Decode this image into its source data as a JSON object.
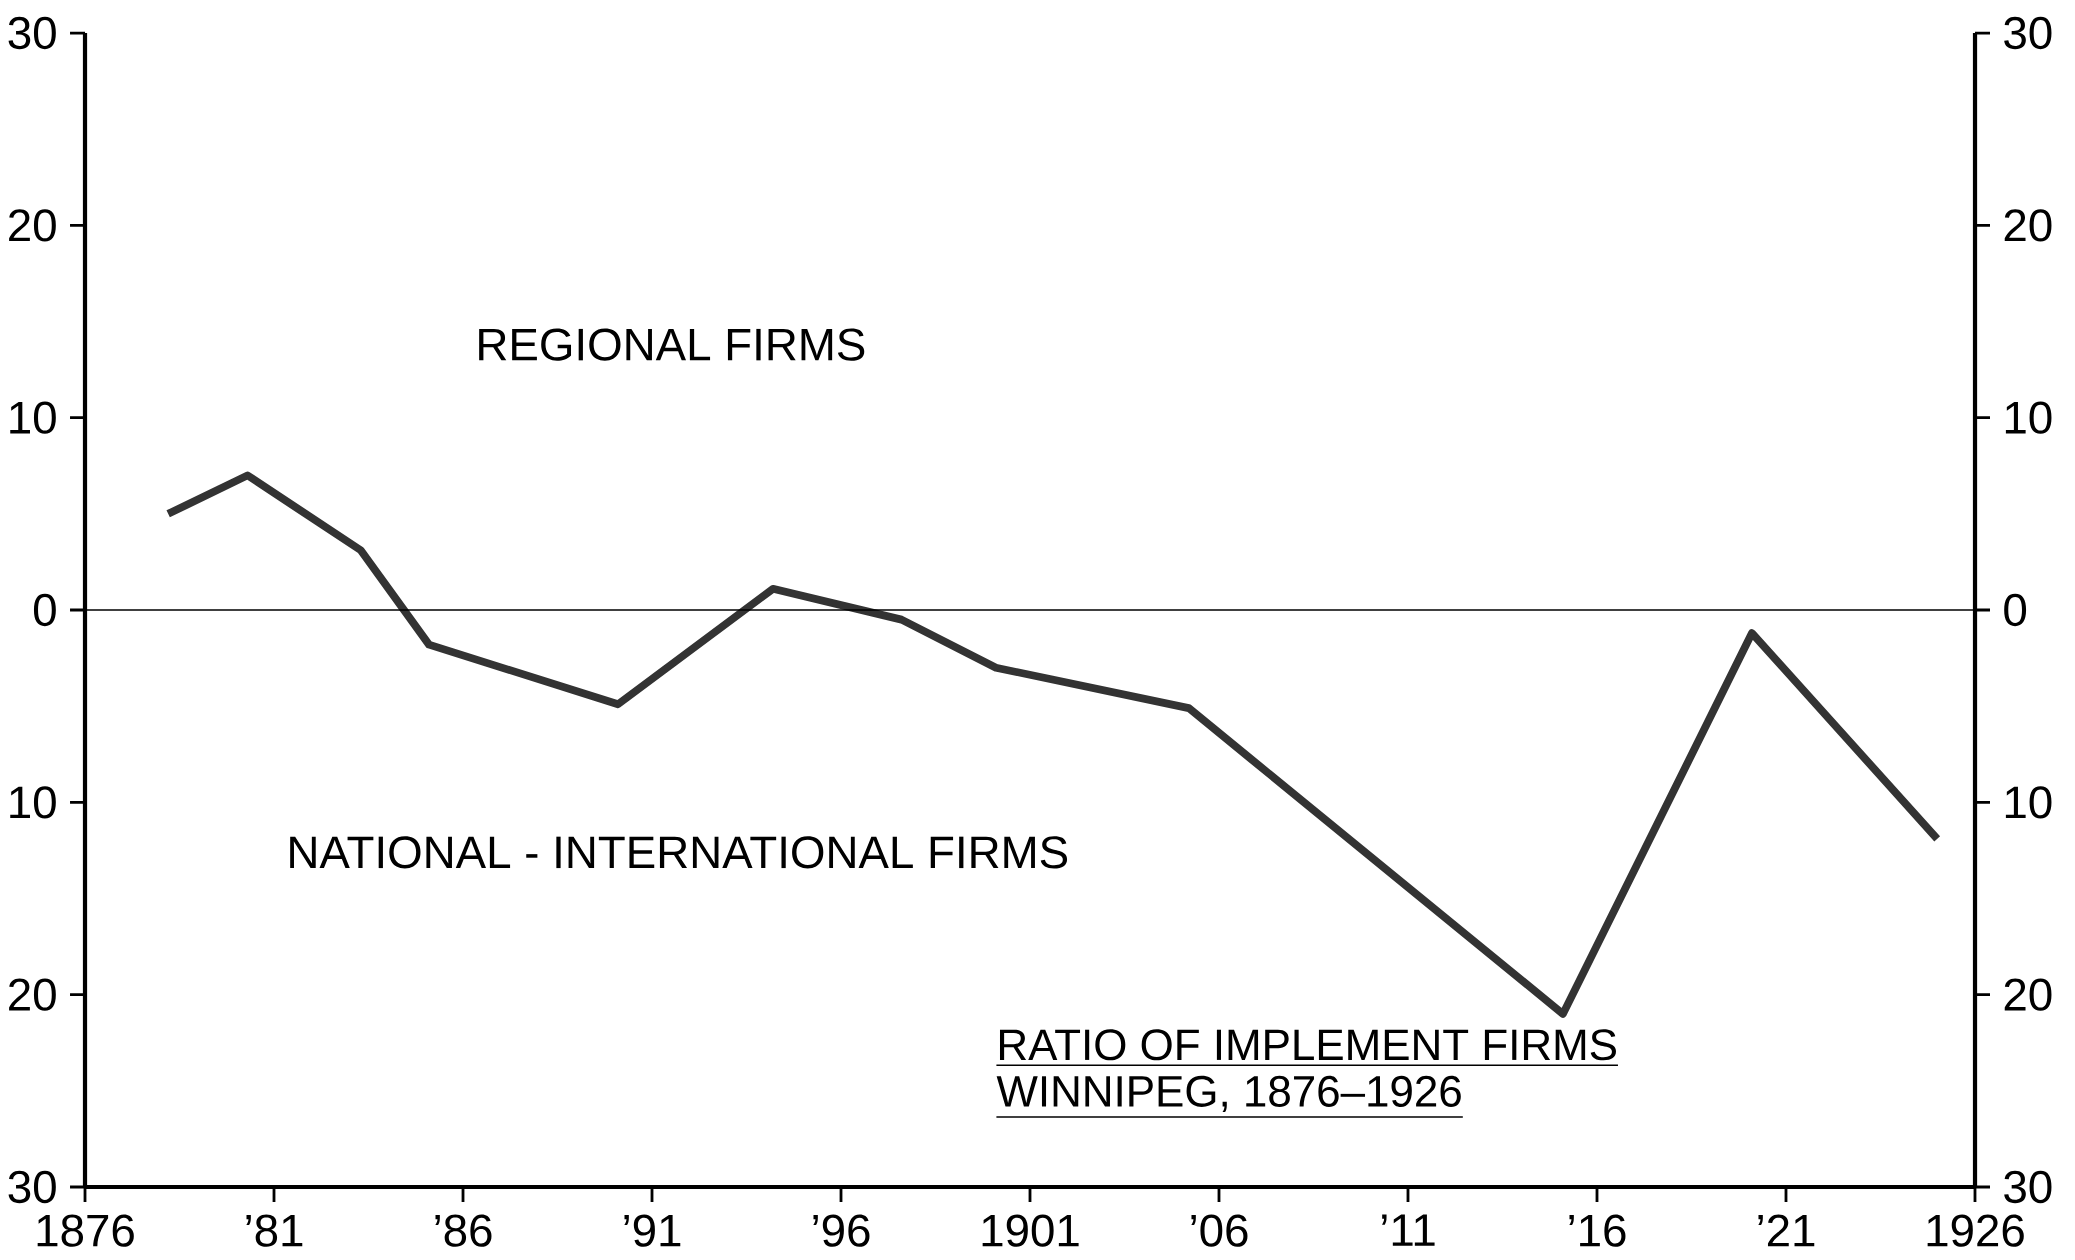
{
  "chart_data": {
    "type": "line",
    "title": "RATIO OF IMPLEMENT FIRMS",
    "subtitle": "WINNIPEG, 1876–1926",
    "annotations": [
      "REGIONAL FIRMS",
      "NATIONAL - INTERNATIONAL FIRMS"
    ],
    "x": [
      1878.2,
      1880.3,
      1883.3,
      1885.1,
      1890.1,
      1894.2,
      1897.6,
      1900.1,
      1905.2,
      1915.1,
      1920.1,
      1925.0
    ],
    "series": [
      {
        "color": "#333333",
        "values": [
          5,
          7,
          3.1,
          -1.8,
          -4.9,
          1.1,
          -0.5,
          -3.0,
          -5.1,
          -21,
          -1.2,
          -11.9
        ]
      }
    ],
    "xlim": [
      1876,
      1926
    ],
    "xticks": [
      1876,
      {
        "value": 1881,
        "label": "’81"
      },
      {
        "value": 1886,
        "label": "’86"
      },
      {
        "value": 1891,
        "label": "’91"
      },
      {
        "value": 1896,
        "label": "’96"
      },
      1901,
      {
        "value": 1906,
        "label": "’06"
      },
      {
        "value": 1911,
        "label": "’11"
      },
      {
        "value": 1916,
        "label": "’16"
      },
      {
        "value": 1921,
        "label": "’21"
      },
      1926
    ],
    "ylim": [
      -30,
      30
    ],
    "yticks": [
      {
        "value": -30,
        "label": "30"
      },
      {
        "value": -20,
        "label": "20"
      },
      {
        "value": -10,
        "label": "10"
      },
      0,
      10,
      20,
      30
    ],
    "y2lim": [
      -30,
      30
    ],
    "y2ticks": [
      {
        "value": -30,
        "label": "30"
      },
      {
        "value": -20,
        "label": "20"
      },
      {
        "value": -10,
        "label": "10"
      },
      0,
      10,
      20,
      30
    ],
    "ref_lines": [
      {
        "axis": "y",
        "value": 0
      }
    ],
    "grid": false,
    "marker": "none",
    "line_style": "solid"
  }
}
